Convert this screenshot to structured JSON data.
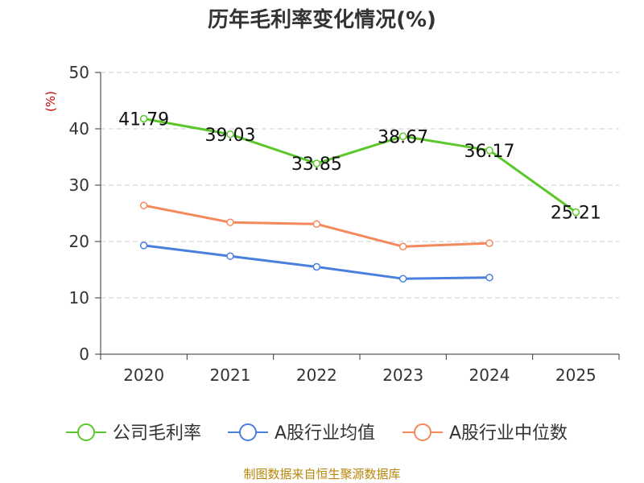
{
  "chart_data": {
    "type": "line",
    "title": "历年毛利率变化情况(%)",
    "ylabel": "(%)",
    "xlabel": "",
    "ylim": [
      0,
      50
    ],
    "yticks": [
      "0",
      "10",
      "20",
      "30",
      "40",
      "50"
    ],
    "categories": [
      "2020",
      "2021",
      "2022",
      "2023",
      "2024",
      "2025"
    ],
    "grid": "dashed-horizontal",
    "legend_position": "bottom",
    "series": [
      {
        "name": "公司毛利率",
        "color": "#5bc72b",
        "values": [
          41.79,
          39.03,
          33.85,
          38.67,
          36.17,
          25.21
        ],
        "labels": [
          "41.79",
          "39.03",
          "33.85",
          "38.67",
          "36.17",
          "25.21"
        ]
      },
      {
        "name": "A股行业均值",
        "color": "#4a7fde",
        "values": [
          19.3,
          17.4,
          15.5,
          13.4,
          13.6,
          null
        ]
      },
      {
        "name": "A股行业中位数",
        "color": "#f4895c",
        "values": [
          26.4,
          23.4,
          23.1,
          19.1,
          19.7,
          null
        ]
      }
    ]
  },
  "source": "制图数据来自恒生聚源数据库"
}
